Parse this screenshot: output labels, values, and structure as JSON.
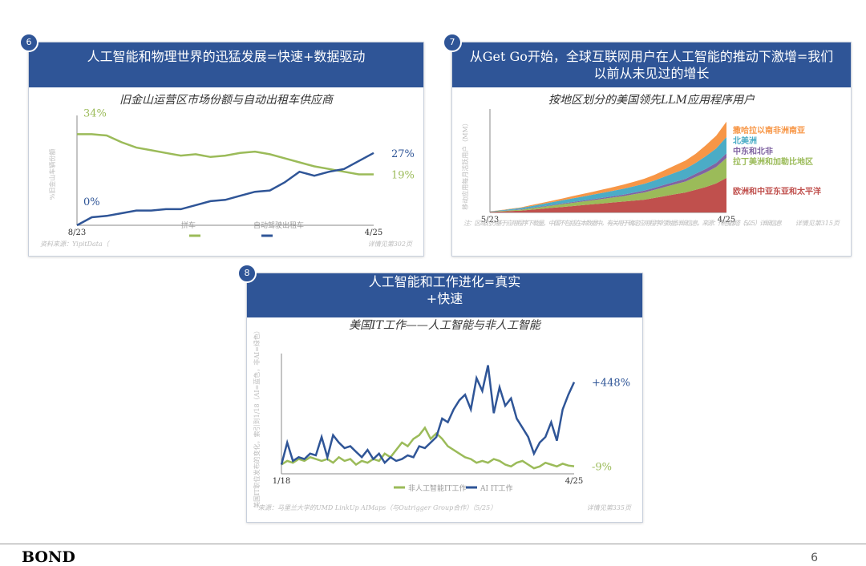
{
  "cards": [
    {
      "number": "6",
      "title": "人工智能和物理世界的迅猛发展=快速+数据驱动",
      "source": "资料来源：YipitData（",
      "page_ref": "详情见第302页"
    },
    {
      "number": "7",
      "title": "从Get Go开始，全球互联网用户在人工智能的推动下激增=我们以前从未见过的增长",
      "source": "注：区域划分基于应用程序下载量，中国不包括在本数据中。有关用于确定应用程序的数据详细信息，来源：传感器塔（5/25）详细信息",
      "page_ref": "详情见第315页"
    },
    {
      "number": "8",
      "title": "人工智能和工作进化=真实+快速",
      "source": "来源：马里兰大学的UMD LinkUp AIMaps（与Outrigger Group合作）（5/25）",
      "page_ref": "详情见第335页"
    }
  ],
  "footer": {
    "brand": "BOND",
    "page_number": "6"
  },
  "chart_data": [
    {
      "type": "line",
      "title": "旧金山运营区市场份额与自动出租车供应商",
      "y_label": "%旧金山车辆份额",
      "categories": [
        "8/23",
        null,
        null,
        null,
        null,
        null,
        null,
        null,
        null,
        null,
        null,
        null,
        null,
        null,
        null,
        null,
        null,
        null,
        null,
        null,
        "4/25"
      ],
      "ylim": [
        0,
        38
      ],
      "series": [
        {
          "name": "拼车",
          "color": "#9bbb59",
          "start_label": "34%",
          "end_label": "19%",
          "values": [
            34,
            34,
            33.5,
            31,
            29,
            28,
            27,
            26,
            26.5,
            25.5,
            26,
            27,
            27.5,
            26.5,
            25,
            23.5,
            22,
            21,
            20,
            19,
            19
          ]
        },
        {
          "name": "自动驾驶出租车",
          "color": "#2f5597",
          "start_label": "0%",
          "end_label": "27%",
          "values": [
            0,
            3,
            3.5,
            4.5,
            5.5,
            5.5,
            6,
            6,
            7.5,
            9,
            9.5,
            11,
            12.5,
            13,
            16,
            20,
            18.5,
            20,
            21,
            24,
            27
          ]
        }
      ]
    },
    {
      "type": "area",
      "title": "按地区划分的美国领先LLM应用程序用户",
      "y_label": "移动应用每月活跃用户（MM）",
      "categories": [
        "5/23",
        null,
        null,
        null,
        null,
        null,
        null,
        null,
        null,
        null,
        null,
        null,
        null,
        null,
        null,
        null,
        null,
        null,
        null,
        null,
        null,
        null,
        null,
        "4/25"
      ],
      "ylim": [
        0,
        105
      ],
      "series": [
        {
          "name": "撒哈拉以南非洲南亚",
          "color": "#f79646",
          "values": [
            0.1,
            0.3,
            0.5,
            0.7,
            1,
            1.3,
            1.6,
            2,
            2.4,
            2.8,
            3.2,
            3.6,
            4,
            4.5,
            5,
            5.6,
            6.2,
            7,
            8,
            9,
            10,
            12,
            14,
            17
          ]
        },
        {
          "name": "北美洲",
          "color": "#4bacc6",
          "values": [
            0.3,
            0.6,
            1,
            1.5,
            2,
            2.5,
            3,
            3.5,
            4,
            4.5,
            5,
            5.5,
            6,
            6.5,
            7,
            7.5,
            8,
            9,
            10,
            11,
            12,
            14,
            16,
            18
          ]
        },
        {
          "name": "中东和北非",
          "color": "#8064a2",
          "values": [
            0.1,
            0.2,
            0.3,
            0.4,
            0.5,
            0.6,
            0.7,
            0.8,
            0.9,
            1,
            1.1,
            1.2,
            1.4,
            1.6,
            1.8,
            2,
            2.2,
            2.5,
            2.8,
            3,
            3.5,
            4,
            4.5,
            5
          ]
        },
        {
          "name": "拉丁美洲和加勒比地区",
          "color": "#9bbb59",
          "values": [
            0.2,
            0.5,
            0.8,
            1,
            1.5,
            2,
            2.5,
            3,
            3.5,
            4,
            4.5,
            5,
            5.5,
            6,
            7,
            8,
            9,
            10,
            11,
            12,
            14,
            16,
            18,
            22
          ]
        },
        {
          "name": "欧洲和中亚东亚和太平洋",
          "color": "#c0504d",
          "values": [
            0.5,
            1,
            1.5,
            2,
            3,
            4,
            5,
            6,
            7,
            8,
            9,
            10,
            11,
            12,
            13,
            14,
            16,
            18,
            20,
            22,
            25,
            28,
            32,
            38
          ]
        }
      ]
    },
    {
      "type": "line",
      "title": "美国IT工作——人工智能与非人工智能",
      "y_label": "美国IT职位发布的变化，索引到1/18（AI=蓝色，非AI=绿色）",
      "categories": [
        "1/18",
        null,
        null,
        null,
        null,
        null,
        null,
        null,
        null,
        null,
        null,
        null,
        null,
        null,
        null,
        null,
        null,
        null,
        null,
        null,
        null,
        null,
        null,
        null,
        null,
        null,
        null,
        null,
        null,
        null,
        null,
        null,
        null,
        null,
        null,
        null,
        null,
        null,
        null,
        null,
        null,
        null,
        null,
        null,
        null,
        null,
        null,
        null,
        null,
        null,
        null,
        "4/25"
      ],
      "ylim": [
        -50,
        560
      ],
      "series": [
        {
          "name": "非人工智能IT工作",
          "color": "#9bbb59",
          "end_label": "-9%",
          "values": [
            0,
            20,
            10,
            30,
            20,
            40,
            30,
            20,
            30,
            10,
            40,
            20,
            30,
            0,
            20,
            10,
            30,
            20,
            60,
            40,
            80,
            120,
            100,
            140,
            160,
            200,
            140,
            170,
            140,
            100,
            80,
            60,
            40,
            30,
            10,
            20,
            10,
            30,
            20,
            0,
            -10,
            10,
            20,
            0,
            -20,
            -10,
            10,
            0,
            -10,
            5,
            -5,
            -9
          ]
        },
        {
          "name": "AI IT工作",
          "color": "#2f5597",
          "end_label": "+448%",
          "values": [
            0,
            120,
            20,
            40,
            30,
            60,
            50,
            150,
            40,
            160,
            120,
            90,
            100,
            70,
            40,
            80,
            30,
            60,
            10,
            40,
            20,
            30,
            50,
            40,
            100,
            90,
            120,
            150,
            250,
            230,
            300,
            350,
            380,
            300,
            470,
            400,
            540,
            280,
            420,
            320,
            360,
            250,
            200,
            150,
            60,
            120,
            150,
            230,
            130,
            300,
            380,
            448
          ]
        }
      ]
    }
  ]
}
